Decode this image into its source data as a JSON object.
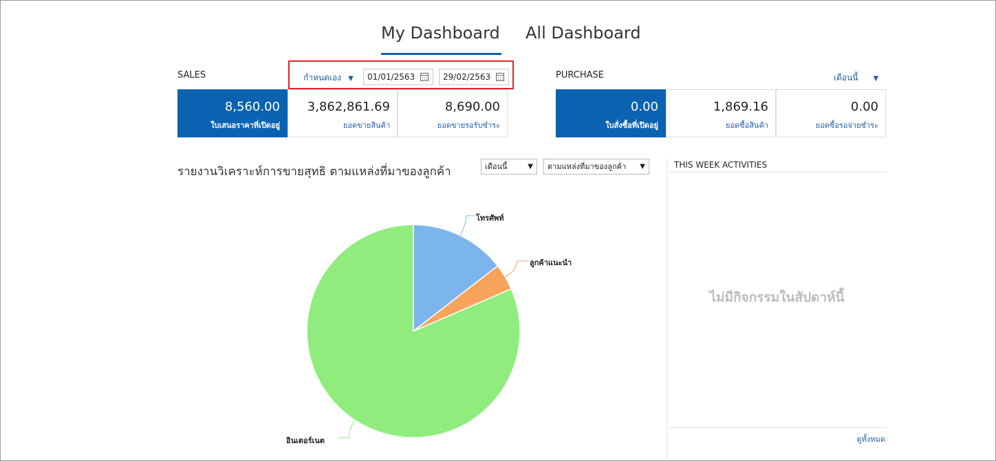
{
  "tabs": {
    "my_dashboard": "My Dashboard",
    "all_dashboard": "All Dashboard"
  },
  "sales": {
    "label": "SALES",
    "period": "กำหนดเอง",
    "date_from": "01/01/2563",
    "date_to": "29/02/2563",
    "cards": [
      {
        "value": "8,560.00",
        "label": "ใบเสนอราคาที่เปิดอยู่"
      },
      {
        "value": "3,862,861.69",
        "label": "ยอดขายสินค้า"
      },
      {
        "value": "8,690.00",
        "label": "ยอดขายรอรับชำระ"
      }
    ]
  },
  "purchase": {
    "label": "PURCHASE",
    "period": "เดือนนี้",
    "cards": [
      {
        "value": "0.00",
        "label": "ใบสั่งซื้อที่เปิดอยู่"
      },
      {
        "value": "1,869.16",
        "label": "ยอดซื้อสินค้า"
      },
      {
        "value": "0.00",
        "label": "ยอดซื้อรอจ่ายชำระ"
      }
    ]
  },
  "report": {
    "title": "รายงานวิเคราะห์การขายสุทธิ ตามแหล่งที่มาของลูกค้า",
    "period_select": "เดือนนี้",
    "group_select": "ตามแหล่งที่มาของลูกค้า"
  },
  "chart_data": {
    "type": "pie",
    "title": "",
    "slices": [
      {
        "label": "โทรศัพท์",
        "value": 14.5,
        "color": "#7cb5ec"
      },
      {
        "label": "ลูกค้าแนะนำ",
        "value": 4.0,
        "color": "#f7a35c"
      },
      {
        "label": "อินเตอร์เนต",
        "value": 81.5,
        "color": "#90ed7d"
      }
    ]
  },
  "activities": {
    "title": "THIS WEEK ACTIVITIES",
    "empty_text": "ไม่มีกิจกรรมในสัปดาห์นี้",
    "view_all": "ดูทั้งหมด"
  }
}
